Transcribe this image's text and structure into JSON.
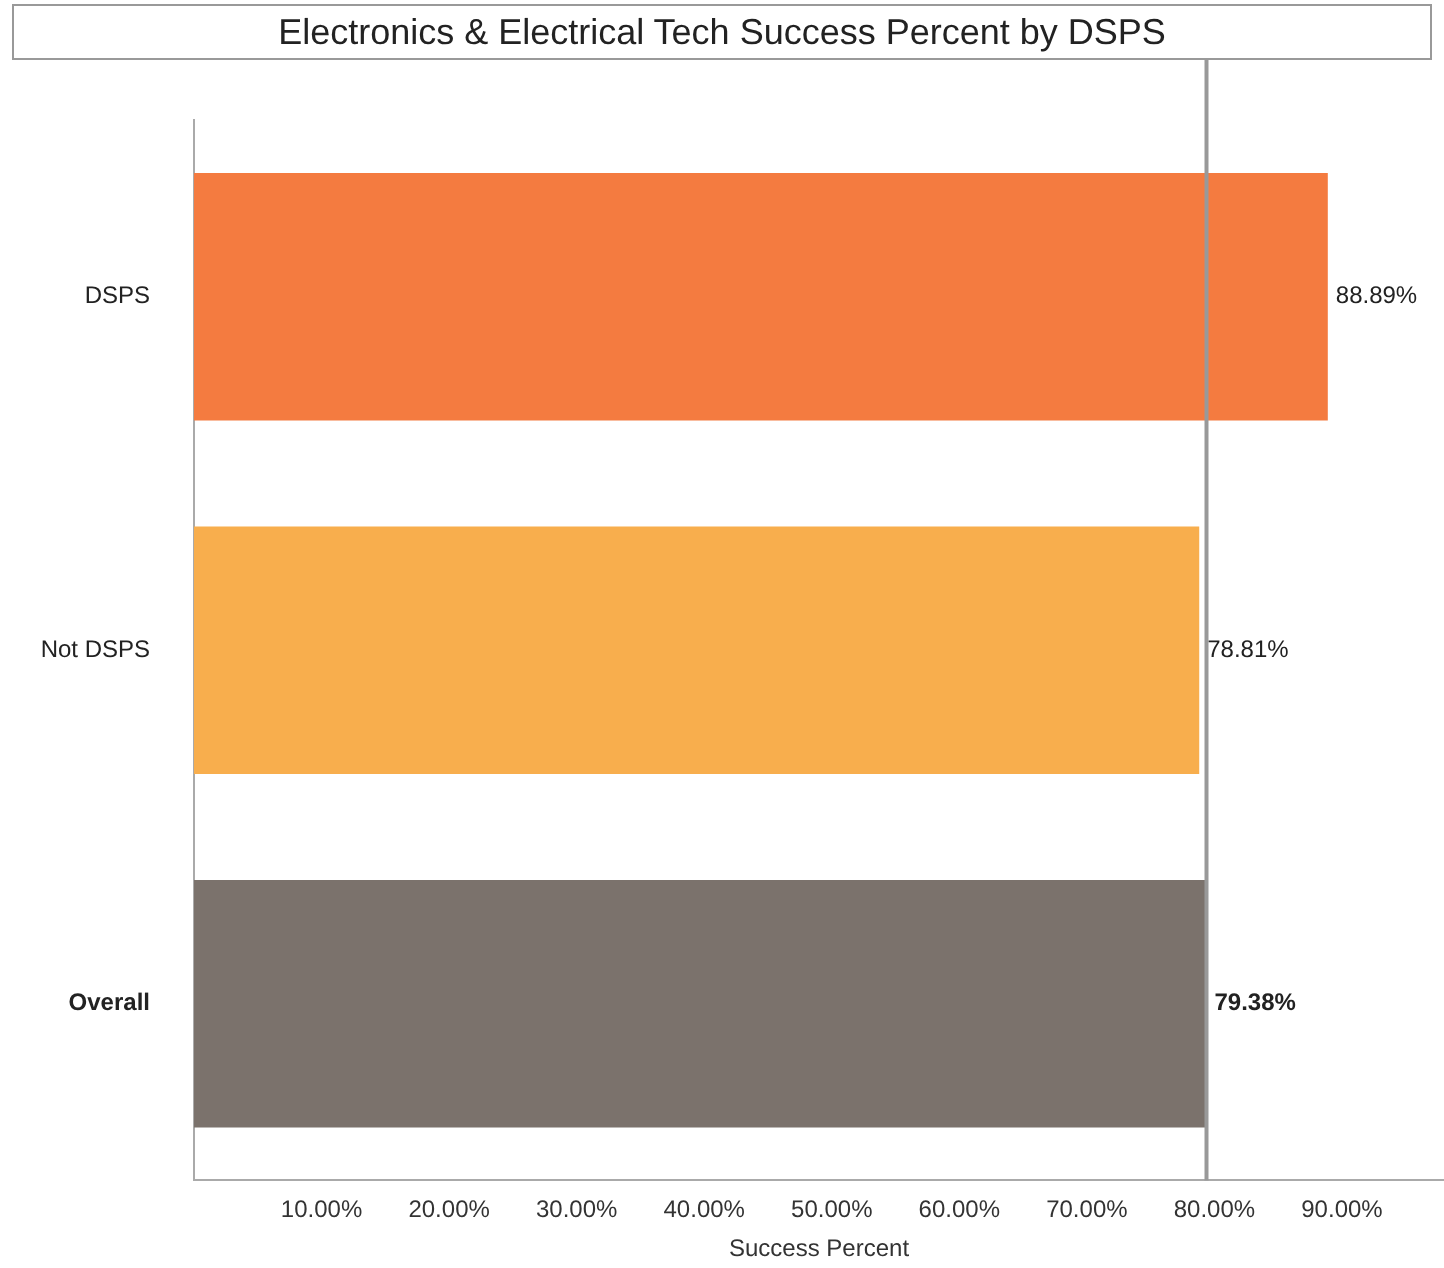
{
  "chart_data": {
    "type": "bar",
    "orientation": "horizontal",
    "title": "Electronics & Electrical Tech Success Percent by DSPS",
    "xlabel": "Success Percent",
    "categories": [
      "DSPS",
      "Not DSPS",
      "Overall"
    ],
    "values": [
      88.89,
      78.81,
      79.38
    ],
    "colors": [
      "#f47b40",
      "#f8ae4d",
      "#7b726c"
    ],
    "value_labels": [
      "88.89%",
      "78.81%",
      "79.38%"
    ],
    "xlim": [
      0,
      98
    ],
    "xticks": [
      {
        "value": 10,
        "label": "10.00%"
      },
      {
        "value": 20,
        "label": "20.00%"
      },
      {
        "value": 30,
        "label": "30.00%"
      },
      {
        "value": 40,
        "label": "40.00%"
      },
      {
        "value": 50,
        "label": "50.00%"
      },
      {
        "value": 60,
        "label": "60.00%"
      },
      {
        "value": 70,
        "label": "70.00%"
      },
      {
        "value": 80,
        "label": "80.00%"
      },
      {
        "value": 90,
        "label": "90.00%"
      }
    ],
    "ref_lines": [
      {
        "axis": "x",
        "value": 79.38,
        "color": "#999999"
      }
    ],
    "grid": false,
    "legend": false
  }
}
